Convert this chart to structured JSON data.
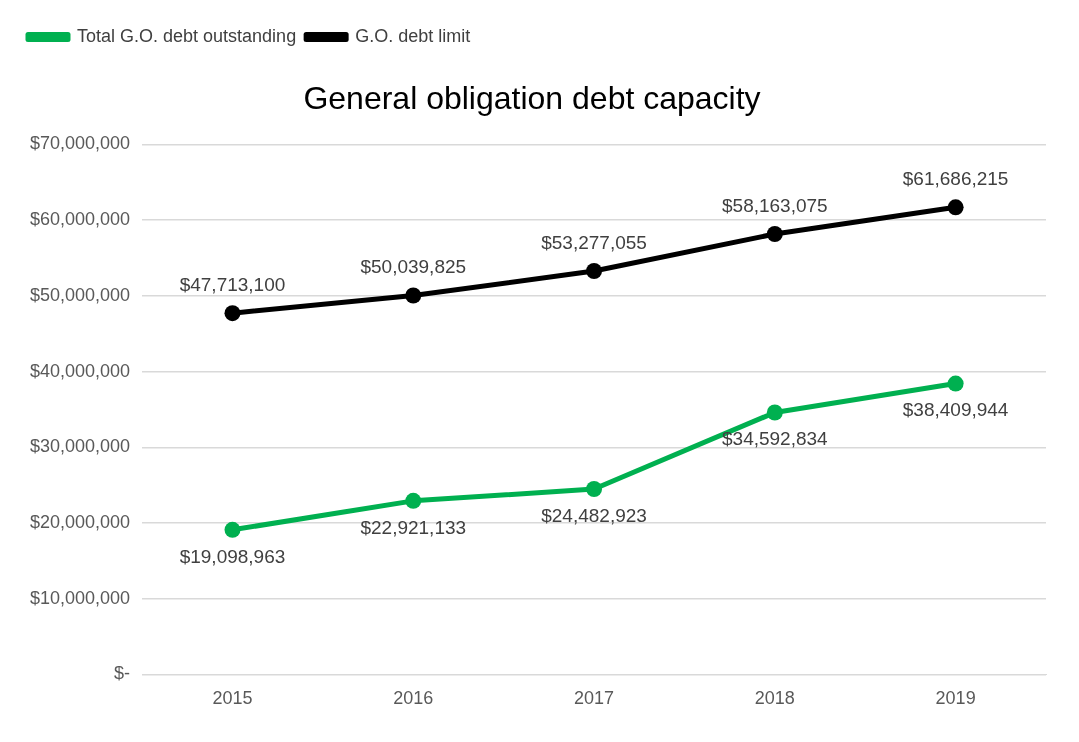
{
  "chart_data": {
    "type": "line",
    "title": "General obligation debt capacity",
    "categories": [
      "2015",
      "2016",
      "2017",
      "2018",
      "2019"
    ],
    "series": [
      {
        "name": "Total G.O. debt outstanding",
        "color": "#00b050",
        "values": [
          19098963,
          22921133,
          24482923,
          34592834,
          38409944
        ],
        "value_labels": [
          "$19,098,963",
          "$22,921,133",
          "$24,482,923",
          "$34,592,834",
          "$38,409,944"
        ]
      },
      {
        "name": "G.O. debt limit",
        "color": "#000000",
        "values": [
          47713100,
          50039825,
          53277055,
          58163075,
          61686215
        ],
        "value_labels": [
          "$47,713,100",
          "$50,039,825",
          "$53,277,055",
          "$58,163,075",
          "$61,686,215"
        ]
      }
    ],
    "ylim": [
      0,
      70000000
    ],
    "yticks": [
      {
        "value": 0,
        "label": "$-"
      },
      {
        "value": 10000000,
        "label": "$10,000,000"
      },
      {
        "value": 20000000,
        "label": "$20,000,000"
      },
      {
        "value": 30000000,
        "label": "$30,000,000"
      },
      {
        "value": 40000000,
        "label": "$40,000,000"
      },
      {
        "value": 50000000,
        "label": "$50,000,000"
      },
      {
        "value": 60000000,
        "label": "$60,000,000"
      },
      {
        "value": 70000000,
        "label": "$70,000,000"
      }
    ],
    "grid": "y",
    "legend": "top left",
    "marker": "circle",
    "line_style": "solid"
  }
}
